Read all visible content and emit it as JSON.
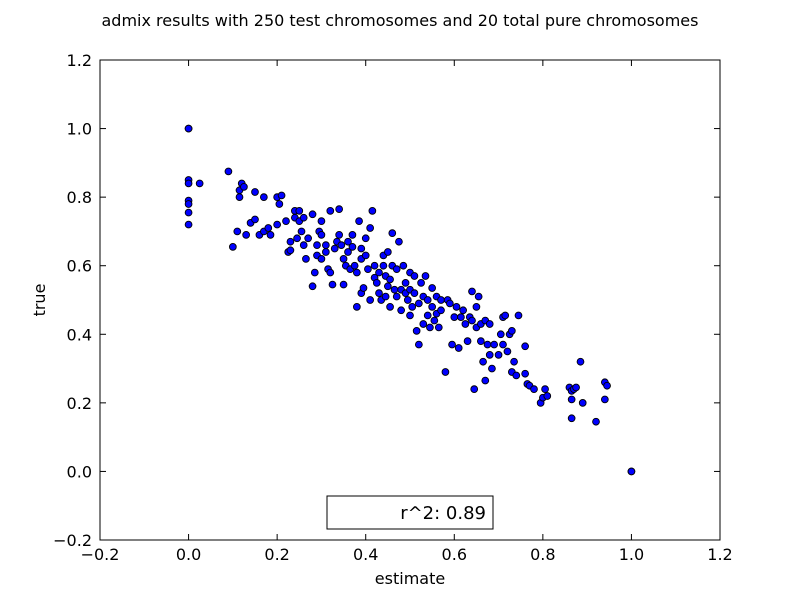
{
  "chart_data": {
    "type": "scatter",
    "title": "admix results with 250 test chromosomes and 20 total pure chromosomes",
    "xlabel": "estimate",
    "ylabel": "true",
    "xlim": [
      -0.2,
      1.2
    ],
    "ylim": [
      -0.2,
      1.2
    ],
    "xticks": [
      -0.2,
      0.0,
      0.2,
      0.4,
      0.6,
      0.8,
      1.0,
      1.2
    ],
    "yticks": [
      -0.2,
      0.0,
      0.2,
      0.4,
      0.6,
      0.8,
      1.0,
      1.2
    ],
    "xtick_labels": [
      "−0.2",
      "0.0",
      "0.2",
      "0.4",
      "0.6",
      "0.8",
      "1.0",
      "1.2"
    ],
    "ytick_labels": [
      "−0.2",
      "0.0",
      "0.2",
      "0.4",
      "0.6",
      "0.8",
      "1.0",
      "1.2"
    ],
    "grid": false,
    "annotation": "r^2: 0.89",
    "marker_color": "#0000ff",
    "marker_edge_color": "#000000",
    "points": [
      [
        0.0,
        1.0
      ],
      [
        0.0,
        1.0
      ],
      [
        0.0,
        0.85
      ],
      [
        0.0,
        0.84
      ],
      [
        0.0,
        0.79
      ],
      [
        0.0,
        0.78
      ],
      [
        0.0,
        0.755
      ],
      [
        0.0,
        0.72
      ],
      [
        0.025,
        0.84
      ],
      [
        0.09,
        0.875
      ],
      [
        0.1,
        0.655
      ],
      [
        0.11,
        0.7
      ],
      [
        0.115,
        0.82
      ],
      [
        0.115,
        0.8
      ],
      [
        0.12,
        0.84
      ],
      [
        0.125,
        0.83
      ],
      [
        0.13,
        0.69
      ],
      [
        0.14,
        0.725
      ],
      [
        0.15,
        0.735
      ],
      [
        0.15,
        0.815
      ],
      [
        0.16,
        0.69
      ],
      [
        0.17,
        0.8
      ],
      [
        0.17,
        0.7
      ],
      [
        0.18,
        0.71
      ],
      [
        0.185,
        0.69
      ],
      [
        0.2,
        0.8
      ],
      [
        0.2,
        0.72
      ],
      [
        0.205,
        0.78
      ],
      [
        0.21,
        0.805
      ],
      [
        0.22,
        0.73
      ],
      [
        0.225,
        0.64
      ],
      [
        0.23,
        0.645
      ],
      [
        0.23,
        0.67
      ],
      [
        0.24,
        0.76
      ],
      [
        0.24,
        0.74
      ],
      [
        0.245,
        0.68
      ],
      [
        0.25,
        0.76
      ],
      [
        0.25,
        0.73
      ],
      [
        0.255,
        0.7
      ],
      [
        0.26,
        0.74
      ],
      [
        0.26,
        0.66
      ],
      [
        0.265,
        0.62
      ],
      [
        0.27,
        0.68
      ],
      [
        0.28,
        0.75
      ],
      [
        0.28,
        0.54
      ],
      [
        0.285,
        0.58
      ],
      [
        0.29,
        0.63
      ],
      [
        0.29,
        0.66
      ],
      [
        0.295,
        0.7
      ],
      [
        0.3,
        0.73
      ],
      [
        0.3,
        0.69
      ],
      [
        0.3,
        0.62
      ],
      [
        0.31,
        0.66
      ],
      [
        0.31,
        0.64
      ],
      [
        0.315,
        0.59
      ],
      [
        0.32,
        0.58
      ],
      [
        0.32,
        0.76
      ],
      [
        0.325,
        0.545
      ],
      [
        0.33,
        0.65
      ],
      [
        0.335,
        0.67
      ],
      [
        0.34,
        0.765
      ],
      [
        0.34,
        0.69
      ],
      [
        0.345,
        0.66
      ],
      [
        0.35,
        0.62
      ],
      [
        0.35,
        0.545
      ],
      [
        0.355,
        0.6
      ],
      [
        0.36,
        0.67
      ],
      [
        0.36,
        0.64
      ],
      [
        0.365,
        0.59
      ],
      [
        0.37,
        0.69
      ],
      [
        0.37,
        0.655
      ],
      [
        0.375,
        0.6
      ],
      [
        0.38,
        0.48
      ],
      [
        0.38,
        0.58
      ],
      [
        0.385,
        0.73
      ],
      [
        0.39,
        0.65
      ],
      [
        0.39,
        0.62
      ],
      [
        0.39,
        0.52
      ],
      [
        0.395,
        0.535
      ],
      [
        0.4,
        0.68
      ],
      [
        0.4,
        0.63
      ],
      [
        0.405,
        0.59
      ],
      [
        0.41,
        0.71
      ],
      [
        0.41,
        0.5
      ],
      [
        0.415,
        0.76
      ],
      [
        0.42,
        0.6
      ],
      [
        0.42,
        0.565
      ],
      [
        0.425,
        0.55
      ],
      [
        0.43,
        0.58
      ],
      [
        0.43,
        0.52
      ],
      [
        0.435,
        0.5
      ],
      [
        0.44,
        0.63
      ],
      [
        0.44,
        0.6
      ],
      [
        0.445,
        0.57
      ],
      [
        0.445,
        0.51
      ],
      [
        0.45,
        0.64
      ],
      [
        0.45,
        0.54
      ],
      [
        0.455,
        0.56
      ],
      [
        0.455,
        0.48
      ],
      [
        0.46,
        0.695
      ],
      [
        0.46,
        0.6
      ],
      [
        0.465,
        0.53
      ],
      [
        0.47,
        0.59
      ],
      [
        0.47,
        0.51
      ],
      [
        0.475,
        0.67
      ],
      [
        0.48,
        0.53
      ],
      [
        0.48,
        0.47
      ],
      [
        0.485,
        0.6
      ],
      [
        0.49,
        0.55
      ],
      [
        0.49,
        0.52
      ],
      [
        0.495,
        0.5
      ],
      [
        0.5,
        0.58
      ],
      [
        0.5,
        0.53
      ],
      [
        0.5,
        0.455
      ],
      [
        0.505,
        0.48
      ],
      [
        0.51,
        0.57
      ],
      [
        0.51,
        0.52
      ],
      [
        0.515,
        0.41
      ],
      [
        0.52,
        0.49
      ],
      [
        0.52,
        0.37
      ],
      [
        0.525,
        0.55
      ],
      [
        0.53,
        0.51
      ],
      [
        0.53,
        0.43
      ],
      [
        0.535,
        0.57
      ],
      [
        0.54,
        0.5
      ],
      [
        0.54,
        0.455
      ],
      [
        0.545,
        0.42
      ],
      [
        0.55,
        0.535
      ],
      [
        0.55,
        0.48
      ],
      [
        0.555,
        0.44
      ],
      [
        0.56,
        0.51
      ],
      [
        0.56,
        0.46
      ],
      [
        0.565,
        0.42
      ],
      [
        0.57,
        0.5
      ],
      [
        0.57,
        0.47
      ],
      [
        0.58,
        0.29
      ],
      [
        0.585,
        0.5
      ],
      [
        0.59,
        0.49
      ],
      [
        0.595,
        0.37
      ],
      [
        0.6,
        0.45
      ],
      [
        0.605,
        0.48
      ],
      [
        0.61,
        0.36
      ],
      [
        0.615,
        0.45
      ],
      [
        0.62,
        0.47
      ],
      [
        0.625,
        0.43
      ],
      [
        0.63,
        0.38
      ],
      [
        0.635,
        0.45
      ],
      [
        0.64,
        0.525
      ],
      [
        0.64,
        0.44
      ],
      [
        0.645,
        0.24
      ],
      [
        0.65,
        0.48
      ],
      [
        0.65,
        0.42
      ],
      [
        0.655,
        0.51
      ],
      [
        0.66,
        0.43
      ],
      [
        0.66,
        0.38
      ],
      [
        0.665,
        0.32
      ],
      [
        0.67,
        0.44
      ],
      [
        0.67,
        0.265
      ],
      [
        0.675,
        0.37
      ],
      [
        0.68,
        0.43
      ],
      [
        0.68,
        0.34
      ],
      [
        0.685,
        0.3
      ],
      [
        0.69,
        0.37
      ],
      [
        0.7,
        0.34
      ],
      [
        0.705,
        0.4
      ],
      [
        0.71,
        0.45
      ],
      [
        0.71,
        0.37
      ],
      [
        0.715,
        0.455
      ],
      [
        0.72,
        0.35
      ],
      [
        0.725,
        0.4
      ],
      [
        0.73,
        0.41
      ],
      [
        0.73,
        0.29
      ],
      [
        0.735,
        0.32
      ],
      [
        0.74,
        0.28
      ],
      [
        0.745,
        0.455
      ],
      [
        0.76,
        0.365
      ],
      [
        0.76,
        0.285
      ],
      [
        0.765,
        0.255
      ],
      [
        0.77,
        0.25
      ],
      [
        0.78,
        0.24
      ],
      [
        0.795,
        0.2
      ],
      [
        0.8,
        0.215
      ],
      [
        0.805,
        0.24
      ],
      [
        0.81,
        0.22
      ],
      [
        0.86,
        0.245
      ],
      [
        0.865,
        0.21
      ],
      [
        0.865,
        0.235
      ],
      [
        0.865,
        0.155
      ],
      [
        0.87,
        0.24
      ],
      [
        0.875,
        0.245
      ],
      [
        0.885,
        0.32
      ],
      [
        0.89,
        0.2
      ],
      [
        0.92,
        0.145
      ],
      [
        0.94,
        0.26
      ],
      [
        0.94,
        0.21
      ],
      [
        0.945,
        0.25
      ],
      [
        1.0,
        0.0
      ],
      [
        1.0,
        0.0
      ]
    ]
  }
}
